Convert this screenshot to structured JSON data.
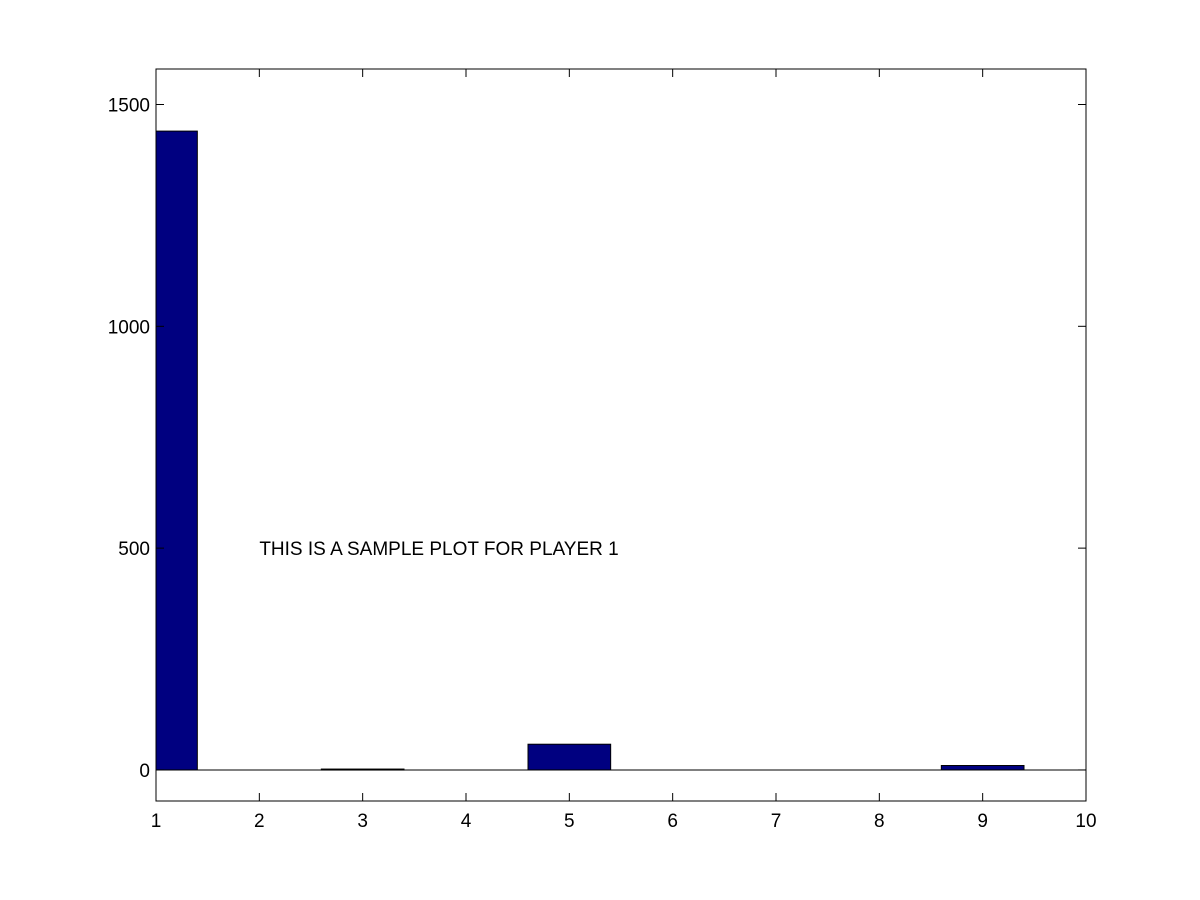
{
  "chart_data": {
    "type": "bar",
    "title": "",
    "xlabel": "",
    "ylabel": "",
    "x": [
      1,
      2,
      3,
      4,
      5,
      6,
      7,
      8,
      9,
      10
    ],
    "values": [
      1440,
      0,
      2,
      0,
      58,
      0,
      0,
      0,
      10,
      0
    ],
    "xlim": [
      1,
      10
    ],
    "ylim": [
      -70,
      1580
    ],
    "x_ticks": [
      1,
      2,
      3,
      4,
      5,
      6,
      7,
      8,
      9,
      10
    ],
    "y_ticks": [
      0,
      500,
      1000,
      1500
    ],
    "bar_width": 0.8,
    "grid": false,
    "box": true,
    "baseline_at_zero": true,
    "bar_color": "#000080",
    "annotations": [
      {
        "text": "THIS IS A SAMPLE PLOT FOR PLAYER 1",
        "x": 2,
        "y": 500
      }
    ]
  }
}
